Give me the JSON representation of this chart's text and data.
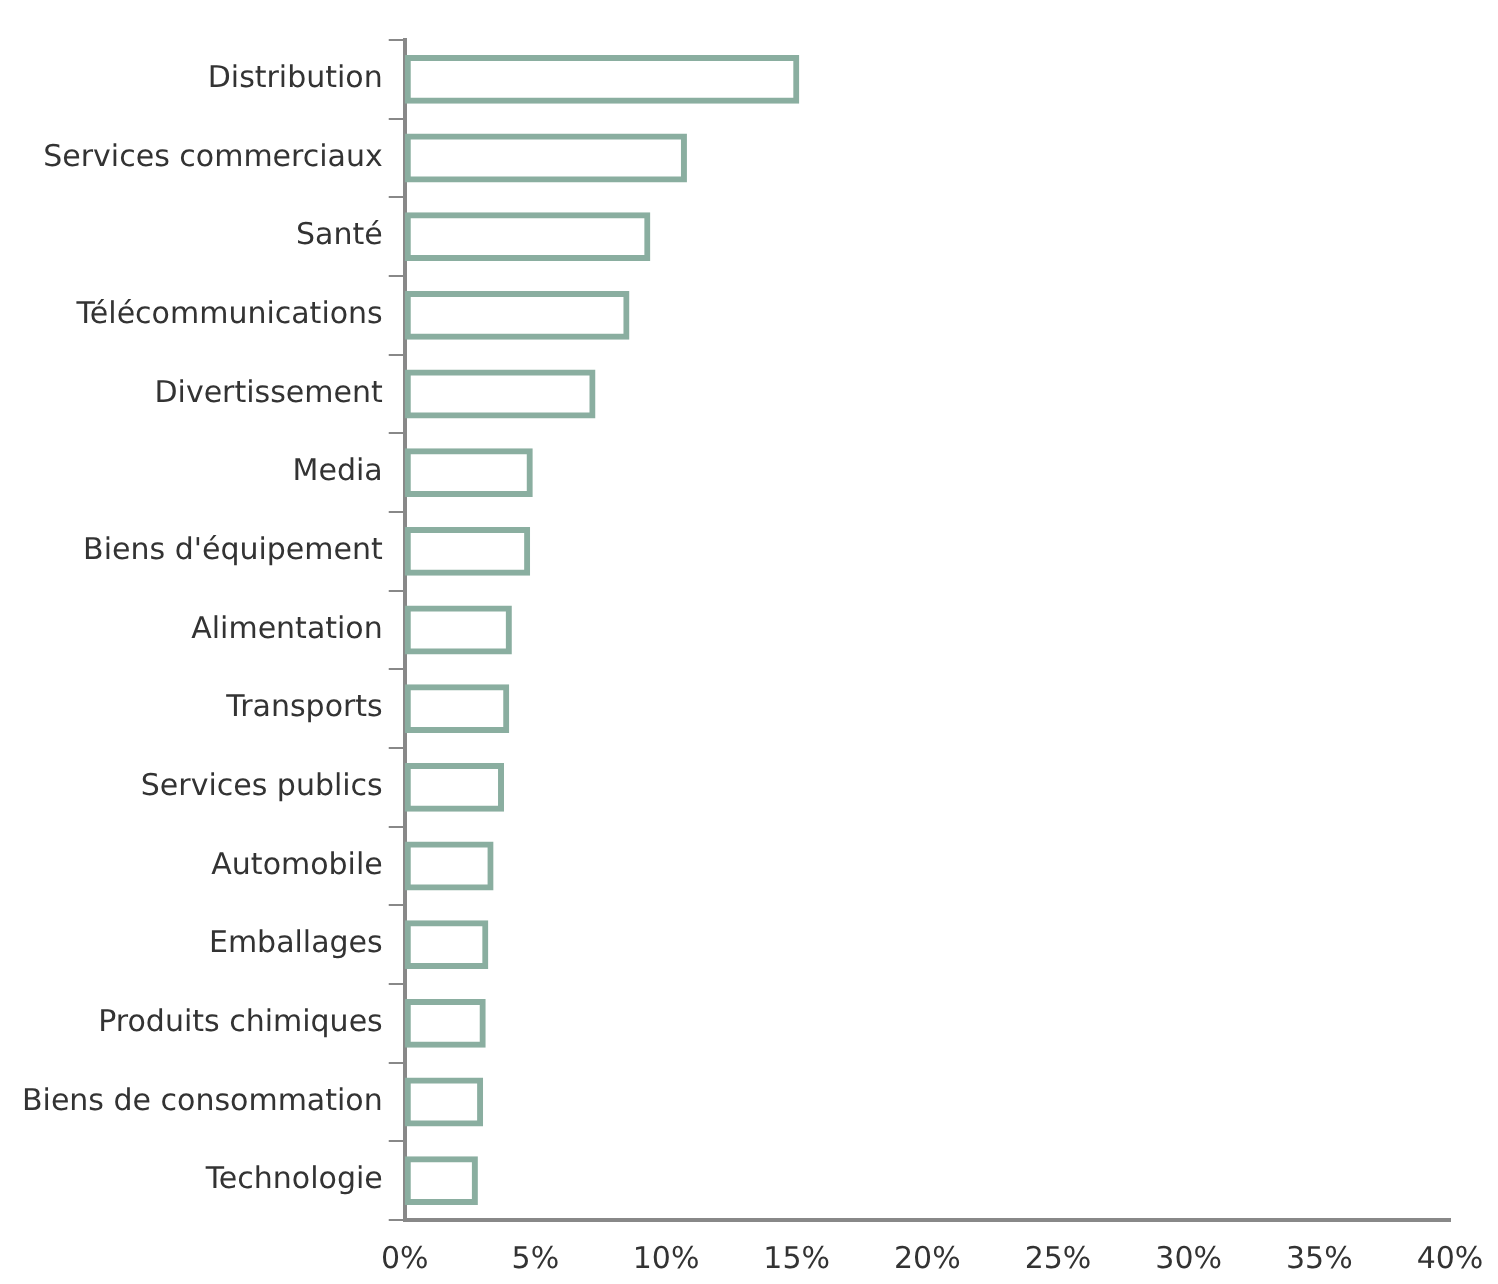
{
  "chart_data": {
    "type": "bar",
    "orientation": "horizontal",
    "categories": [
      "Distribution",
      "Services commerciaux",
      "Santé",
      "Télécommunications",
      "Divertissement",
      "Media",
      "Biens d'équipement",
      "Alimentation",
      "Transports",
      "Services publics",
      "Automobile",
      "Emballages",
      "Produits chimiques",
      "Biens de consommation",
      "Technologie"
    ],
    "values": [
      15.1,
      10.8,
      9.4,
      8.6,
      7.3,
      4.9,
      4.8,
      4.1,
      4.0,
      3.8,
      3.4,
      3.2,
      3.1,
      3.0,
      2.8
    ],
    "color": "#8aaea0",
    "xlim": [
      0,
      40
    ],
    "xticks": [
      {
        "value": 0,
        "label": "0%"
      },
      {
        "value": 5,
        "label": "5%"
      },
      {
        "value": 10,
        "label": "10%"
      },
      {
        "value": 15,
        "label": "15%"
      },
      {
        "value": 20,
        "label": "20%"
      },
      {
        "value": 25,
        "label": "25%"
      },
      {
        "value": 30,
        "label": "30%"
      },
      {
        "value": 35,
        "label": "35%"
      },
      {
        "value": 40,
        "label": "40%"
      }
    ],
    "grid": false,
    "legend": false
  }
}
